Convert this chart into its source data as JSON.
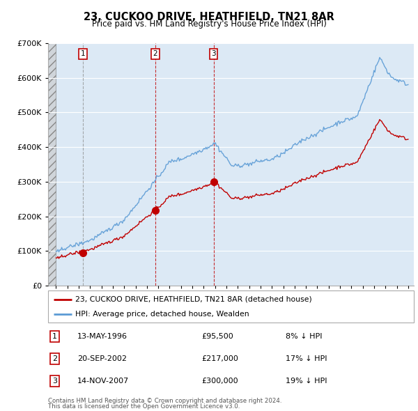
{
  "title": "23, CUCKOO DRIVE, HEATHFIELD, TN21 8AR",
  "subtitle": "Price paid vs. HM Land Registry's House Price Index (HPI)",
  "sale_dates_label": [
    "13-MAY-1996",
    "20-SEP-2002",
    "14-NOV-2007"
  ],
  "sale_year_nums": [
    1996.37,
    2002.72,
    2007.87
  ],
  "sale_prices": [
    95500,
    217000,
    300000
  ],
  "sale_labels": [
    "1",
    "2",
    "3"
  ],
  "legend_line1": "23, CUCKOO DRIVE, HEATHFIELD, TN21 8AR (detached house)",
  "legend_line2": "HPI: Average price, detached house, Wealden",
  "footer1": "Contains HM Land Registry data © Crown copyright and database right 2024.",
  "footer2": "This data is licensed under the Open Government Licence v3.0.",
  "sale_table": [
    {
      "label": "1",
      "date": "13-MAY-1996",
      "price": "£95,500",
      "pct": "8% ↓ HPI"
    },
    {
      "label": "2",
      "date": "20-SEP-2002",
      "price": "£217,000",
      "pct": "17% ↓ HPI"
    },
    {
      "label": "3",
      "date": "14-NOV-2007",
      "price": "£300,000",
      "pct": "19% ↓ HPI"
    }
  ],
  "hpi_color": "#5b9bd5",
  "price_color": "#c00000",
  "ylim": [
    0,
    700000
  ],
  "yticks": [
    0,
    100000,
    200000,
    300000,
    400000,
    500000,
    600000,
    700000
  ],
  "xmin": 1993.3,
  "xmax": 2025.5,
  "hatch_end": 1994.0,
  "chart_bg": "#dce9f5",
  "grid_color": "white"
}
